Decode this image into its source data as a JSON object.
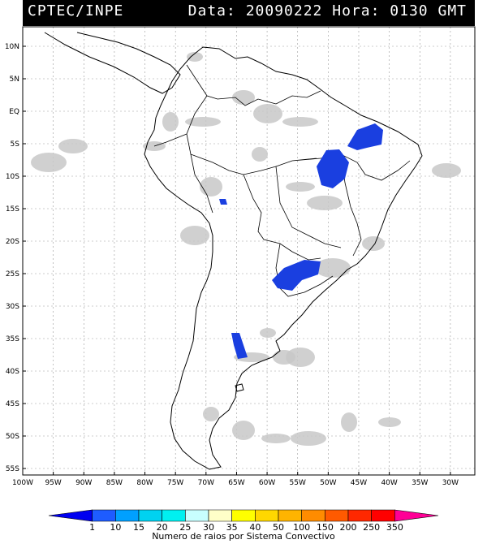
{
  "header": {
    "source": "CPTEC/INPE",
    "date_label": "Data:",
    "date_value": "20090222",
    "time_label": "Hora:",
    "time_value": "0130",
    "time_zone": "GMT"
  },
  "map": {
    "lat_range": [
      -56,
      13
    ],
    "lon_range": [
      -100,
      -26
    ],
    "lat_labels": [
      "10N",
      "5N",
      "EQ",
      "5S",
      "10S",
      "15S",
      "20S",
      "25S",
      "30S",
      "35S",
      "40S",
      "45S",
      "50S",
      "55S"
    ],
    "lat_values": [
      10,
      5,
      0,
      -5,
      -10,
      -15,
      -20,
      -25,
      -30,
      -35,
      -40,
      -45,
      -50,
      -55
    ],
    "lon_labels": [
      "100W",
      "95W",
      "90W",
      "85W",
      "80W",
      "75W",
      "70W",
      "65W",
      "60W",
      "55W",
      "50W",
      "45W",
      "40W",
      "35W",
      "30W"
    ],
    "lon_values": [
      -100,
      -95,
      -90,
      -85,
      -80,
      -75,
      -70,
      -65,
      -60,
      -55,
      -50,
      -45,
      -40,
      -35,
      -30
    ],
    "cloud_color": "#c8c8c8",
    "lightning_color": "#1a3fe0"
  },
  "legend": {
    "title": "Numero de raios por Sistema Convectivo",
    "values": [
      "1",
      "10",
      "15",
      "20",
      "25",
      "30",
      "35",
      "40",
      "50",
      "100",
      "150",
      "200",
      "250",
      "350"
    ],
    "colors": [
      "#0000f0",
      "#1e5cff",
      "#00a0ff",
      "#00d2f0",
      "#00f0f0",
      "#c8ffff",
      "#ffffc8",
      "#ffff00",
      "#ffd700",
      "#ffb400",
      "#ff8c00",
      "#ff5a00",
      "#ff2800",
      "#ff0000",
      "#ff0096"
    ]
  }
}
